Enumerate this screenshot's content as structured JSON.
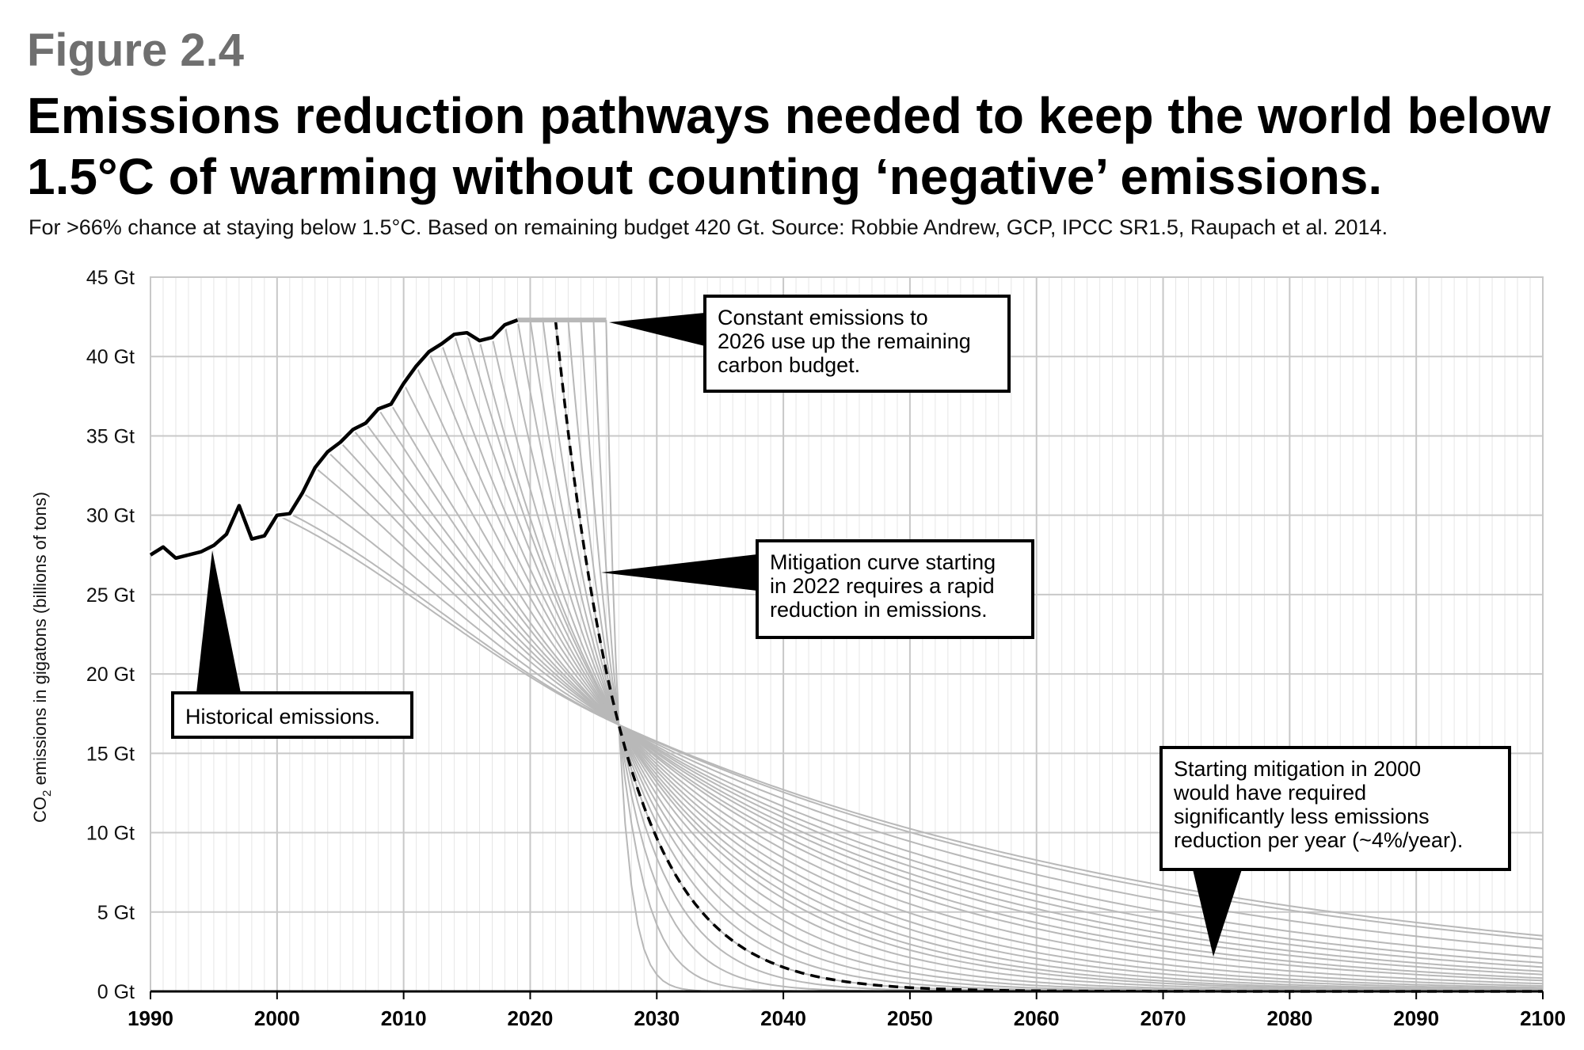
{
  "figure_label": "Figure 2.4",
  "title": "Emissions reduction pathways needed to keep the world below 1.5°C of warming without counting ‘negative’ emissions.",
  "subtitle": "For >66% chance at staying below 1.5°C. Based on remaining budget 420 Gt. Source: Robbie Andrew, GCP, IPCC SR1.5, Raupach et al. 2014.",
  "colors": {
    "historical": "#000000",
    "pathways": "#b8b8b8",
    "highlight": "#000000",
    "grid_major": "#c8c8c8",
    "grid_minor": "#e6e6e6"
  },
  "annotations": {
    "constant": "Constant emissions to\n2026 use up the remaining\ncarbon budget.",
    "mitigation2022": "Mitigation curve starting\nin 2022 requires a rapid\nreduction in emissions.",
    "historical": "Historical emissions.",
    "mitigation2000": "Starting mitigation in 2000\nwould have required\nsignificantly less emissions\nreduction per year (~4%/year)."
  },
  "chart_data": {
    "type": "line",
    "title": "Emissions reduction pathways needed to keep the world below 1.5°C of warming without counting ‘negative’ emissions.",
    "ylabel_main": "CO",
    "ylabel_sub": "2",
    "ylabel_rest": " emissions in gigatons (billions of tons)",
    "xlim": [
      1990,
      2100
    ],
    "ylim": [
      0,
      45
    ],
    "x_ticks": [
      "1990",
      "2000",
      "2010",
      "2020",
      "2030",
      "2040",
      "2050",
      "2060",
      "2070",
      "2080",
      "2090",
      "2100"
    ],
    "y_ticks": [
      "0 Gt",
      "5 Gt",
      "10 Gt",
      "15 Gt",
      "20 Gt",
      "25 Gt",
      "30 Gt",
      "35 Gt",
      "40 Gt",
      "45 Gt"
    ],
    "grid": true,
    "historical": {
      "x": [
        1990,
        1991,
        1992,
        1993,
        1994,
        1995,
        1996,
        1997,
        1998,
        1999,
        2000,
        2001,
        2002,
        2003,
        2004,
        2005,
        2006,
        2007,
        2008,
        2009,
        2010,
        2011,
        2012,
        2013,
        2014,
        2015,
        2016,
        2017,
        2018,
        2019
      ],
      "y": [
        27.5,
        28.0,
        27.3,
        27.5,
        27.7,
        28.1,
        28.8,
        30.6,
        28.5,
        28.7,
        30.0,
        30.1,
        31.4,
        33.0,
        34.0,
        34.6,
        35.4,
        35.8,
        36.7,
        37.0,
        38.3,
        39.4,
        40.3,
        40.8,
        41.4,
        41.5,
        41.0,
        41.2,
        42.0,
        42.3
      ]
    },
    "constant_level": 42.3,
    "constant_until": 2026,
    "converge_point": [
      2027,
      16.8
    ],
    "pathway_start_years": [
      2000,
      2001,
      2002,
      2003,
      2004,
      2005,
      2006,
      2007,
      2008,
      2009,
      2010,
      2011,
      2012,
      2013,
      2014,
      2015,
      2016,
      2017,
      2018,
      2019,
      2020,
      2021,
      2022,
      2023,
      2024,
      2025,
      2026
    ],
    "highlight_start_year": 2022,
    "remaining_budget_gt": 420
  }
}
